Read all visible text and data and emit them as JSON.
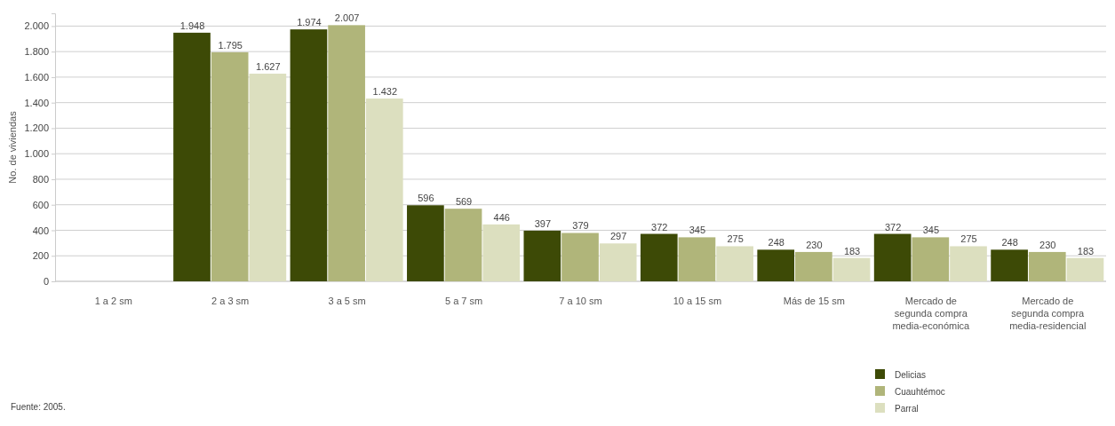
{
  "chart_data": {
    "type": "bar",
    "ylabel": "No. de viviendas",
    "categories": [
      "1 a 2 sm",
      "2 a 3 sm",
      "3 a 5 sm",
      "5 a 7 sm",
      "7 a 10 sm",
      "10 a 15 sm",
      "Más de 15 sm",
      "Mercado de segunda compra media-económica",
      "Mercado de segunda compra media-residencial"
    ],
    "series": [
      {
        "name": "Delicias",
        "color": "#3d4a06",
        "values": [
          null,
          1948,
          1974,
          596,
          397,
          372,
          248,
          372,
          248
        ],
        "value_labels": [
          null,
          "1.948",
          "1.974",
          "596",
          "397",
          "372",
          "248",
          "372",
          "248"
        ]
      },
      {
        "name": "Cuauhtémoc",
        "color": "#b0b57a",
        "values": [
          null,
          1795,
          2007,
          569,
          379,
          345,
          230,
          345,
          230
        ],
        "value_labels": [
          null,
          "1.795",
          "2.007",
          "569",
          "379",
          "345",
          "230",
          "345",
          "230"
        ]
      },
      {
        "name": "Parral",
        "color": "#dcdfbf",
        "values": [
          null,
          1627,
          1432,
          446,
          297,
          275,
          183,
          275,
          183
        ],
        "value_labels": [
          null,
          "1.627",
          "1.432",
          "446",
          "297",
          "275",
          "183",
          "275",
          "183"
        ]
      }
    ],
    "ylim": [
      0,
      2100
    ],
    "yticks": [
      0,
      200,
      400,
      600,
      800,
      {
        "value": 1000,
        "label": "1.000"
      },
      {
        "value": 1200,
        "label": "1.200"
      },
      {
        "value": 1400,
        "label": "1.400"
      },
      {
        "value": 1600,
        "label": "1.600"
      },
      {
        "value": 1800,
        "label": "1.800"
      },
      {
        "value": 2000,
        "label": "2.000"
      }
    ],
    "grid": "y",
    "legend": "bottom right",
    "annotations": [
      "Fuente: 2005."
    ]
  }
}
